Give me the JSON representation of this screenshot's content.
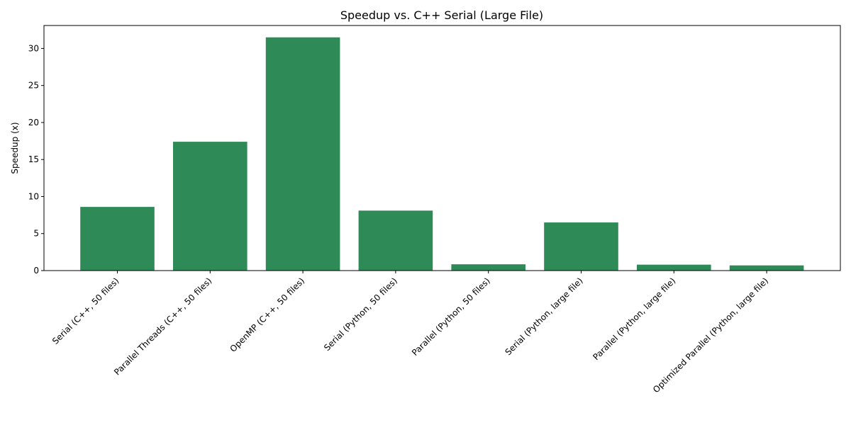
{
  "chart_data": {
    "type": "bar",
    "title": "Speedup vs. C++ Serial (Large File)",
    "xlabel": "",
    "ylabel": "Speedup (x)",
    "categories": [
      "Serial (C++, 50 files)",
      "Parallel Threads (C++, 50 files)",
      "OpenMP (C++, 50 files)",
      "Serial (Python, 50 files)",
      "Parallel (Python, 50 files)",
      "Serial (Python, large file)",
      "Parallel (Python, large file)",
      "Optimized Parallel (Python, large file)"
    ],
    "values": [
      8.6,
      17.4,
      31.5,
      8.1,
      0.85,
      6.5,
      0.8,
      0.7
    ],
    "ylim": [
      0,
      33.1
    ],
    "yticks": [
      0,
      5,
      10,
      15,
      20,
      25,
      30
    ],
    "bar_color": "#2e8b57",
    "grid": false,
    "legend": "none"
  }
}
